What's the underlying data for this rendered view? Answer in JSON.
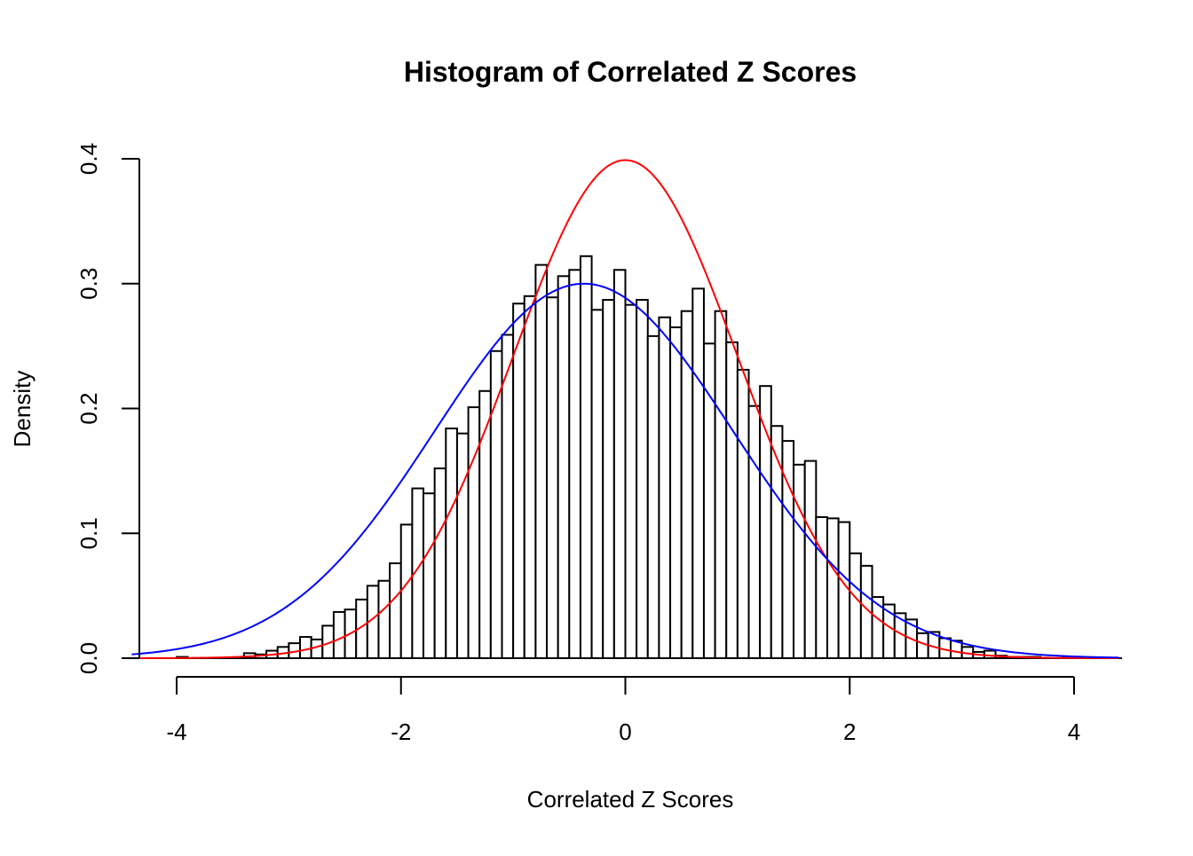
{
  "chart_data": {
    "type": "histogram",
    "title": "Histogram of Correlated Z Scores",
    "xlabel": "Correlated Z Scores",
    "ylabel": "Density",
    "xlim": [
      -4,
      4
    ],
    "ylim": [
      0,
      0.4
    ],
    "x_ticks": [
      -4,
      -2,
      0,
      2,
      4
    ],
    "x_tick_labels": [
      "-4",
      "-2",
      "0",
      "2",
      "4"
    ],
    "y_ticks": [
      0.0,
      0.1,
      0.2,
      0.3,
      0.4
    ],
    "y_tick_labels": [
      "0.0",
      "0.1",
      "0.2",
      "0.3",
      "0.4"
    ],
    "bin_width": 0.1,
    "bins": [
      {
        "x0": -4.0,
        "density": 0.001
      },
      {
        "x0": -3.4,
        "density": 0.004
      },
      {
        "x0": -3.3,
        "density": 0.003
      },
      {
        "x0": -3.2,
        "density": 0.006
      },
      {
        "x0": -3.1,
        "density": 0.009
      },
      {
        "x0": -3.0,
        "density": 0.012
      },
      {
        "x0": -2.9,
        "density": 0.017
      },
      {
        "x0": -2.8,
        "density": 0.015
      },
      {
        "x0": -2.7,
        "density": 0.026
      },
      {
        "x0": -2.6,
        "density": 0.037
      },
      {
        "x0": -2.5,
        "density": 0.039
      },
      {
        "x0": -2.4,
        "density": 0.047
      },
      {
        "x0": -2.3,
        "density": 0.058
      },
      {
        "x0": -2.2,
        "density": 0.062
      },
      {
        "x0": -2.1,
        "density": 0.076
      },
      {
        "x0": -2.0,
        "density": 0.107
      },
      {
        "x0": -1.9,
        "density": 0.136
      },
      {
        "x0": -1.8,
        "density": 0.132
      },
      {
        "x0": -1.7,
        "density": 0.152
      },
      {
        "x0": -1.6,
        "density": 0.184
      },
      {
        "x0": -1.5,
        "density": 0.18
      },
      {
        "x0": -1.4,
        "density": 0.201
      },
      {
        "x0": -1.3,
        "density": 0.214
      },
      {
        "x0": -1.2,
        "density": 0.246
      },
      {
        "x0": -1.1,
        "density": 0.259
      },
      {
        "x0": -1.0,
        "density": 0.284
      },
      {
        "x0": -0.9,
        "density": 0.29
      },
      {
        "x0": -0.8,
        "density": 0.315
      },
      {
        "x0": -0.7,
        "density": 0.289
      },
      {
        "x0": -0.6,
        "density": 0.306
      },
      {
        "x0": -0.5,
        "density": 0.311
      },
      {
        "x0": -0.4,
        "density": 0.322
      },
      {
        "x0": -0.3,
        "density": 0.279
      },
      {
        "x0": -0.2,
        "density": 0.287
      },
      {
        "x0": -0.1,
        "density": 0.311
      },
      {
        "x0": 0.0,
        "density": 0.283
      },
      {
        "x0": 0.1,
        "density": 0.287
      },
      {
        "x0": 0.2,
        "density": 0.258
      },
      {
        "x0": 0.3,
        "density": 0.273
      },
      {
        "x0": 0.4,
        "density": 0.265
      },
      {
        "x0": 0.5,
        "density": 0.278
      },
      {
        "x0": 0.6,
        "density": 0.296
      },
      {
        "x0": 0.7,
        "density": 0.252
      },
      {
        "x0": 0.8,
        "density": 0.278
      },
      {
        "x0": 0.9,
        "density": 0.253
      },
      {
        "x0": 1.0,
        "density": 0.231
      },
      {
        "x0": 1.1,
        "density": 0.202
      },
      {
        "x0": 1.2,
        "density": 0.218
      },
      {
        "x0": 1.3,
        "density": 0.186
      },
      {
        "x0": 1.4,
        "density": 0.174
      },
      {
        "x0": 1.5,
        "density": 0.155
      },
      {
        "x0": 1.6,
        "density": 0.158
      },
      {
        "x0": 1.7,
        "density": 0.113
      },
      {
        "x0": 1.8,
        "density": 0.112
      },
      {
        "x0": 1.9,
        "density": 0.109
      },
      {
        "x0": 2.0,
        "density": 0.084
      },
      {
        "x0": 2.1,
        "density": 0.074
      },
      {
        "x0": 2.2,
        "density": 0.049
      },
      {
        "x0": 2.3,
        "density": 0.043
      },
      {
        "x0": 2.4,
        "density": 0.036
      },
      {
        "x0": 2.5,
        "density": 0.031
      },
      {
        "x0": 2.6,
        "density": 0.02
      },
      {
        "x0": 2.7,
        "density": 0.021
      },
      {
        "x0": 2.8,
        "density": 0.016
      },
      {
        "x0": 2.9,
        "density": 0.014
      },
      {
        "x0": 3.0,
        "density": 0.009
      },
      {
        "x0": 3.1,
        "density": 0.005
      },
      {
        "x0": 3.2,
        "density": 0.006
      },
      {
        "x0": 3.3,
        "density": 0.002
      },
      {
        "x0": 3.4,
        "density": 0.001
      },
      {
        "x0": 3.5,
        "density": 0.001
      },
      {
        "x0": 3.6,
        "density": 0.001
      },
      {
        "x0": 3.9,
        "density": 0.001
      },
      {
        "x0": 4.0,
        "density": 0.001
      }
    ],
    "curves": [
      {
        "distribution": "normal",
        "mean": 0.0,
        "sd": 1.0,
        "color": "#ff0000"
      },
      {
        "distribution": "normal",
        "mean": -0.37,
        "sd": 1.33,
        "color": "#0000ff"
      }
    ],
    "bar_fill": "#ffffff",
    "bar_stroke": "#000000",
    "grid": false
  }
}
